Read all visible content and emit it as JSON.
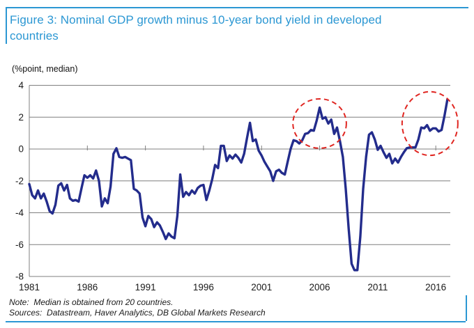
{
  "header": {
    "title": "Figure 3: Nominal GDP growth minus 10-year bond yield in developed countries"
  },
  "footer": {
    "note": "Note:  Median is obtained from 20 countries.",
    "sources": "Sources:  Datastream, Haver Analytics, DB Global Markets Research"
  },
  "colors": {
    "accent_blue": "#2b97d3",
    "line_navy": "#232c8c",
    "highlight_red": "#e02621",
    "grid_gray": "#7f7f7f",
    "label_black": "#1a1a1a"
  },
  "chart_data": {
    "type": "line",
    "title": "Nominal GDP growth minus 10-year bond yield in developed countries",
    "unit_label": "(%point, median)",
    "xlabel": "",
    "ylabel": "%point, median",
    "xlim": [
      1981,
      2017.25
    ],
    "ylim": [
      -8,
      4
    ],
    "grid": true,
    "legend": "none",
    "x_ticks": [
      1981,
      1986,
      1991,
      1996,
      2001,
      2006,
      2011,
      2016
    ],
    "y_ticks": [
      4,
      2,
      0,
      -2,
      -4,
      -6,
      -8
    ],
    "series": [
      {
        "name": "Nominal GDP growth minus 10-year bond yield (median of 20 developed countries)",
        "x_start": 1981,
        "x_step": 0.25,
        "values": [
          -2.2,
          -2.9,
          -3.1,
          -2.6,
          -3.1,
          -2.8,
          -3.3,
          -3.9,
          -4.05,
          -3.5,
          -2.3,
          -2.15,
          -2.6,
          -2.25,
          -3.1,
          -3.25,
          -3.2,
          -3.3,
          -2.45,
          -1.65,
          -1.8,
          -1.65,
          -1.85,
          -1.35,
          -2.0,
          -3.6,
          -3.1,
          -3.4,
          -2.35,
          -0.3,
          0.05,
          -0.5,
          -0.55,
          -0.5,
          -0.6,
          -0.7,
          -2.5,
          -2.6,
          -2.8,
          -4.3,
          -4.85,
          -4.2,
          -4.4,
          -4.9,
          -4.6,
          -4.8,
          -5.2,
          -5.65,
          -5.3,
          -5.5,
          -5.6,
          -4.2,
          -1.6,
          -3.0,
          -2.7,
          -2.9,
          -2.6,
          -2.8,
          -2.45,
          -2.3,
          -2.25,
          -3.2,
          -2.6,
          -1.9,
          -1.0,
          -1.2,
          0.2,
          0.2,
          -0.75,
          -0.4,
          -0.6,
          -0.35,
          -0.55,
          -0.85,
          -0.3,
          0.7,
          1.65,
          0.5,
          0.6,
          -0.1,
          -0.4,
          -0.8,
          -1.1,
          -1.4,
          -2.0,
          -1.4,
          -1.3,
          -1.5,
          -1.6,
          -0.8,
          0.0,
          0.55,
          0.5,
          0.35,
          0.55,
          0.95,
          1.0,
          1.2,
          1.15,
          1.8,
          2.6,
          1.9,
          2.0,
          1.6,
          1.85,
          0.95,
          1.35,
          0.5,
          -0.5,
          -2.5,
          -5.0,
          -7.2,
          -7.6,
          -7.6,
          -5.5,
          -2.5,
          -0.5,
          0.9,
          1.05,
          0.6,
          -0.05,
          0.2,
          -0.2,
          -0.55,
          -0.3,
          -0.9,
          -0.6,
          -0.85,
          -0.5,
          -0.2,
          0.05,
          0.1,
          0.1,
          0.1,
          0.6,
          1.35,
          1.3,
          1.5,
          1.15,
          1.3,
          1.3,
          1.1,
          1.2,
          2.1,
          3.1
        ]
      }
    ],
    "annotations": [
      {
        "name": "highlight-ellipse-2006",
        "shape": "dashed-ellipse",
        "cx": 2006.0,
        "cy": 1.6,
        "rx_years": 2.3,
        "ry_units": 1.55
      },
      {
        "name": "highlight-ellipse-2016",
        "shape": "dashed-ellipse",
        "cx": 2015.5,
        "cy": 1.6,
        "rx_years": 2.4,
        "ry_units": 2.0
      }
    ]
  }
}
